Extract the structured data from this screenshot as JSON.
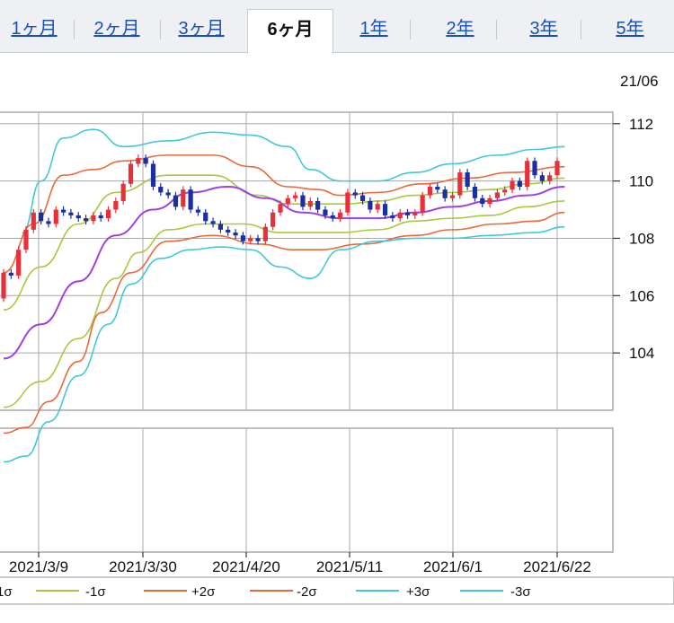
{
  "tabs": [
    {
      "label": "1ヶ月",
      "active": false
    },
    {
      "label": "2ヶ月",
      "active": false
    },
    {
      "label": "3ヶ月",
      "active": false
    },
    {
      "label": "6ヶ月",
      "active": true
    },
    {
      "label": "1年",
      "active": false
    },
    {
      "label": "2年",
      "active": false
    },
    {
      "label": "3年",
      "active": false
    },
    {
      "label": "5年",
      "active": false
    }
  ],
  "header_date": "21/06",
  "colors": {
    "up": "#e8303a",
    "down": "#1a2fa0",
    "sma": "#a040e0",
    "sigma1": "#a8c840",
    "sigma2": "#e86a3a",
    "sigma3": "#40c8d8",
    "grid": "#a8a8a8"
  },
  "chart_data": {
    "type": "candlestick",
    "ylim": [
      102,
      112.4
    ],
    "yticks": [
      104,
      106,
      108,
      110,
      112
    ],
    "xticks": [
      "2021/3/9",
      "2021/3/30",
      "2021/4/20",
      "2021/5/11",
      "2021/6/1",
      "2021/6/22"
    ],
    "bands_path": {
      "p3": [
        [
          2.5,
          108.2
        ],
        [
          5,
          110
        ],
        [
          8,
          111.5
        ],
        [
          12,
          111.8
        ],
        [
          16,
          111.2
        ],
        [
          22,
          111.4
        ],
        [
          28,
          111.7
        ],
        [
          33,
          111.6
        ],
        [
          38,
          111.2
        ],
        [
          41,
          110.4
        ],
        [
          45,
          110
        ],
        [
          50,
          110
        ],
        [
          55,
          110.3
        ],
        [
          60,
          110.6
        ],
        [
          66,
          110.9
        ],
        [
          71,
          111.1
        ],
        [
          75,
          111.2
        ]
      ],
      "p2": [
        [
          0,
          106.8
        ],
        [
          4,
          108.5
        ],
        [
          8,
          110.2
        ],
        [
          12,
          110.4
        ],
        [
          16,
          110.7
        ],
        [
          22,
          110.9
        ],
        [
          28,
          110.9
        ],
        [
          33,
          110.5
        ],
        [
          38,
          109.8
        ],
        [
          42,
          109.7
        ],
        [
          45,
          109.5
        ],
        [
          50,
          109.6
        ],
        [
          56,
          109.9
        ],
        [
          62,
          110.1
        ],
        [
          68,
          110.3
        ],
        [
          75,
          110.5
        ]
      ],
      "p1": [
        [
          0,
          105.5
        ],
        [
          5,
          107
        ],
        [
          10,
          108.5
        ],
        [
          15,
          109.6
        ],
        [
          22,
          110.2
        ],
        [
          28,
          110.2
        ],
        [
          34,
          109.5
        ],
        [
          38,
          109.2
        ],
        [
          42,
          109.2
        ],
        [
          46,
          109.2
        ],
        [
          50,
          109.3
        ],
        [
          55,
          109.5
        ],
        [
          60,
          109.6
        ],
        [
          65,
          109.7
        ],
        [
          70,
          109.9
        ],
        [
          75,
          110.1
        ]
      ],
      "ma": [
        [
          0,
          103.8
        ],
        [
          5,
          105
        ],
        [
          10,
          106.5
        ],
        [
          15,
          108.1
        ],
        [
          20,
          109
        ],
        [
          25,
          109.6
        ],
        [
          30,
          109.8
        ],
        [
          35,
          109.4
        ],
        [
          40,
          108.9
        ],
        [
          45,
          108.7
        ],
        [
          50,
          108.7
        ],
        [
          55,
          108.9
        ],
        [
          60,
          109.1
        ],
        [
          65,
          109.3
        ],
        [
          70,
          109.5
        ],
        [
          75,
          109.8
        ]
      ],
      "m1": [
        [
          0,
          102.1
        ],
        [
          5,
          103
        ],
        [
          10,
          104.5
        ],
        [
          15,
          106.6
        ],
        [
          18,
          107.5
        ],
        [
          22,
          108.3
        ],
        [
          27,
          108.5
        ],
        [
          32,
          108.5
        ],
        [
          37,
          108.2
        ],
        [
          40,
          108.2
        ],
        [
          45,
          108.2
        ],
        [
          50,
          108.3
        ],
        [
          55,
          108.6
        ],
        [
          60,
          108.7
        ],
        [
          65,
          108.8
        ],
        [
          70,
          109.1
        ],
        [
          75,
          109.3
        ]
      ],
      "m2": [
        [
          0,
          101.2
        ],
        [
          3,
          101.4
        ],
        [
          6,
          102.3
        ],
        [
          10,
          103.7
        ],
        [
          13,
          105.4
        ],
        [
          17,
          106.8
        ],
        [
          22,
          107.9
        ],
        [
          28,
          108.1
        ],
        [
          34,
          107.8
        ],
        [
          39,
          107.6
        ],
        [
          42,
          107.6
        ],
        [
          48,
          107.8
        ],
        [
          55,
          108.1
        ],
        [
          60,
          108.3
        ],
        [
          66,
          108.5
        ],
        [
          71,
          108.6
        ],
        [
          75,
          108.9
        ]
      ],
      "m3": [
        [
          0,
          100.2
        ],
        [
          3,
          100.4
        ],
        [
          6,
          101.6
        ],
        [
          10,
          103.2
        ],
        [
          14,
          105
        ],
        [
          17,
          106.4
        ],
        [
          21,
          107.3
        ],
        [
          25,
          107.6
        ],
        [
          29,
          107.7
        ],
        [
          33,
          107.6
        ],
        [
          37,
          107
        ],
        [
          41,
          106.6
        ],
        [
          45,
          107.6
        ],
        [
          50,
          107.9
        ],
        [
          55,
          108
        ],
        [
          60,
          108
        ],
        [
          65,
          108.1
        ],
        [
          71,
          108.2
        ],
        [
          75,
          108.4
        ]
      ]
    },
    "candles": [
      [
        105.9,
        106.8
      ],
      [
        106.8,
        106.7
      ],
      [
        106.7,
        107.6
      ],
      [
        107.6,
        108.3
      ],
      [
        108.3,
        108.9
      ],
      [
        108.9,
        108.6
      ],
      [
        108.6,
        108.5
      ],
      [
        108.5,
        109.0
      ],
      [
        109.0,
        108.9
      ],
      [
        108.9,
        108.8
      ],
      [
        108.8,
        108.7
      ],
      [
        108.7,
        108.6
      ],
      [
        108.6,
        108.8
      ],
      [
        108.8,
        108.7
      ],
      [
        108.7,
        109.0
      ],
      [
        109.0,
        109.3
      ],
      [
        109.3,
        109.9
      ],
      [
        109.9,
        110.6
      ],
      [
        110.6,
        110.8
      ],
      [
        110.8,
        110.6
      ],
      [
        110.6,
        109.8
      ],
      [
        109.8,
        109.6
      ],
      [
        109.6,
        109.5
      ],
      [
        109.5,
        109.1
      ],
      [
        109.1,
        109.7
      ],
      [
        109.7,
        109.0
      ],
      [
        109.0,
        108.9
      ],
      [
        108.9,
        108.6
      ],
      [
        108.6,
        108.5
      ],
      [
        108.5,
        108.3
      ],
      [
        108.3,
        108.2
      ],
      [
        108.2,
        108.1
      ],
      [
        108.1,
        107.9
      ],
      [
        107.9,
        108.0
      ],
      [
        108.0,
        107.9
      ],
      [
        107.9,
        108.4
      ],
      [
        108.4,
        108.9
      ],
      [
        108.9,
        109.2
      ],
      [
        109.2,
        109.4
      ],
      [
        109.4,
        109.5
      ],
      [
        109.5,
        109.1
      ],
      [
        109.1,
        109.3
      ],
      [
        109.3,
        109.0
      ],
      [
        109.0,
        108.8
      ],
      [
        108.8,
        108.7
      ],
      [
        108.7,
        108.9
      ],
      [
        108.9,
        109.6
      ],
      [
        109.6,
        109.5
      ],
      [
        109.5,
        109.3
      ],
      [
        109.3,
        109.0
      ],
      [
        109.0,
        109.2
      ],
      [
        109.2,
        108.8
      ],
      [
        108.8,
        108.7
      ],
      [
        108.7,
        108.9
      ],
      [
        108.9,
        108.8
      ],
      [
        108.8,
        108.9
      ],
      [
        108.9,
        109.5
      ],
      [
        109.5,
        109.8
      ],
      [
        109.8,
        109.7
      ],
      [
        109.7,
        109.4
      ],
      [
        109.4,
        109.5
      ],
      [
        109.5,
        110.3
      ],
      [
        110.3,
        109.8
      ],
      [
        109.8,
        109.4
      ],
      [
        109.4,
        109.2
      ],
      [
        109.2,
        109.4
      ],
      [
        109.4,
        109.6
      ],
      [
        109.6,
        109.7
      ],
      [
        109.7,
        110.0
      ],
      [
        110.0,
        109.8
      ],
      [
        109.8,
        110.7
      ],
      [
        110.7,
        110.2
      ],
      [
        110.2,
        110.0
      ],
      [
        110.0,
        110.2
      ],
      [
        110.2,
        110.7
      ]
    ],
    "series": [
      {
        "name": "1σ",
        "color": "#a040e0",
        "marker": "1σ"
      },
      {
        "name": "-1σ",
        "color": "#a8c840"
      },
      {
        "name": "+2σ",
        "color": "#e86a3a"
      },
      {
        "name": "-2σ",
        "color": "#e86a3a"
      },
      {
        "name": "+3σ",
        "color": "#40c8d8"
      },
      {
        "name": "-3σ",
        "color": "#40c8d8"
      }
    ]
  }
}
